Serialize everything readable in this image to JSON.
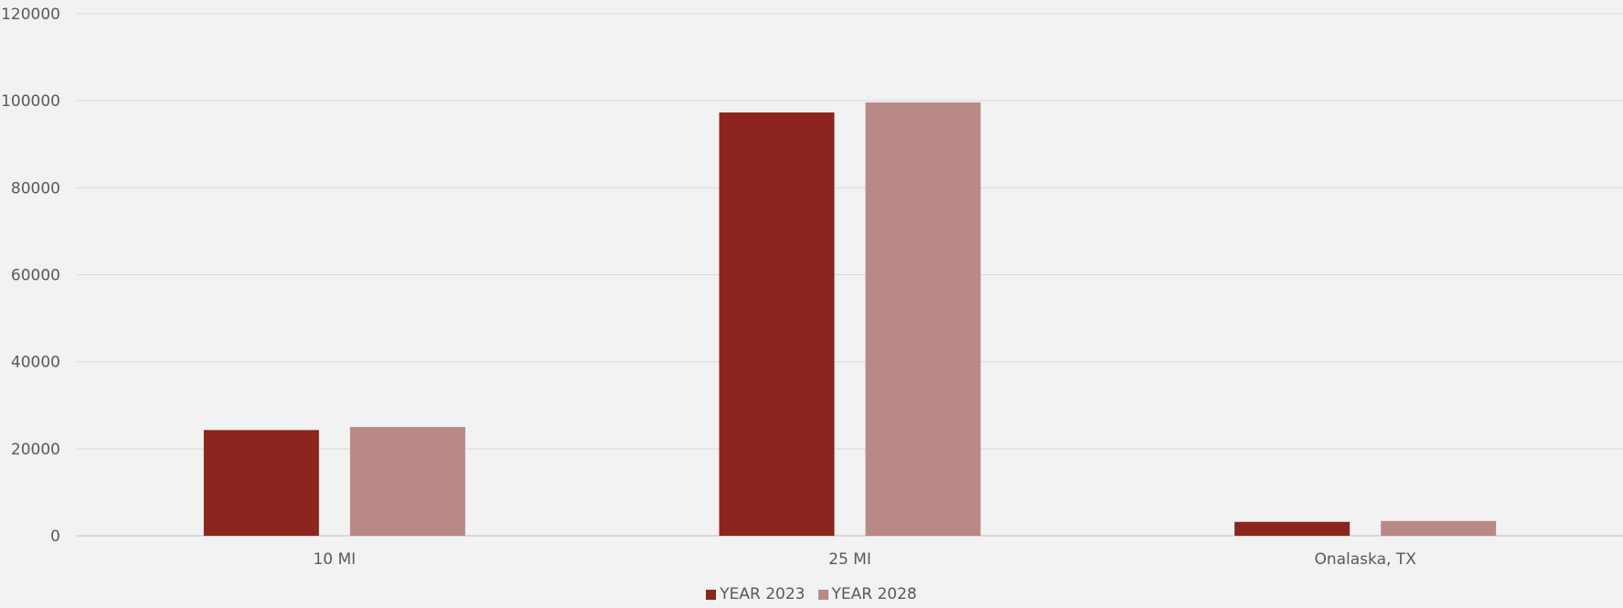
{
  "chart_data": {
    "type": "bar",
    "title": "",
    "xlabel": "",
    "ylabel": "",
    "categories": [
      "10 MI",
      "25 MI",
      "Onalaska, TX"
    ],
    "series": [
      {
        "name": "YEAR 2023",
        "color": "#8b251d",
        "values": [
          24300,
          97300,
          3200
        ]
      },
      {
        "name": "YEAR 2028",
        "color": "#b98986",
        "values": [
          25000,
          99600,
          3400
        ]
      }
    ],
    "ylim": [
      0,
      120000
    ],
    "yticks": [
      0,
      20000,
      40000,
      60000,
      80000,
      100000,
      120000
    ],
    "grid": true,
    "legend_position": "bottom"
  }
}
